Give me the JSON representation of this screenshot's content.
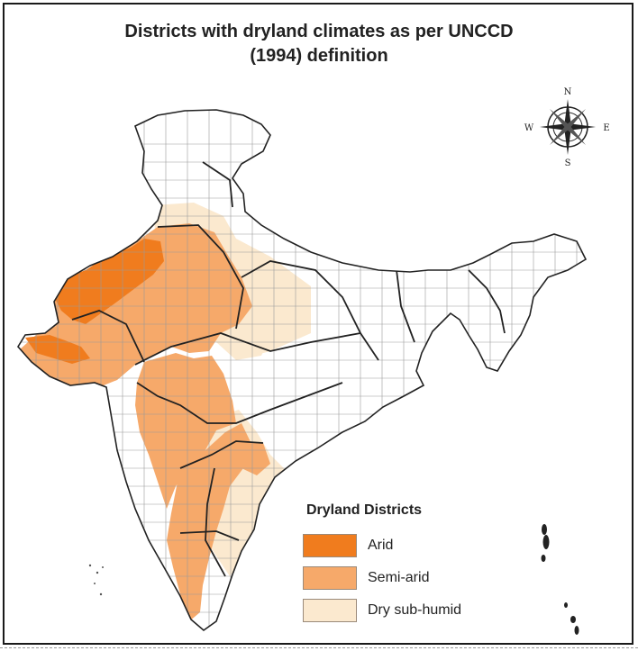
{
  "map": {
    "title_line1": "Districts with dryland climates as per UNCCD",
    "title_line2": "(1994) definition",
    "compass": {
      "n": "N",
      "s": "S",
      "e": "E",
      "w": "W"
    },
    "legend": {
      "title": "Dryland Districts",
      "items": [
        {
          "label": "Arid",
          "color": "#f07c1e"
        },
        {
          "label": "Semi-arid",
          "color": "#f6a96a"
        },
        {
          "label": "Dry sub-humid",
          "color": "#fbe9cf"
        }
      ]
    },
    "colors": {
      "non_dryland": "#ffffff",
      "outline": "#222222",
      "district_lines": "#9a9a9a"
    }
  }
}
